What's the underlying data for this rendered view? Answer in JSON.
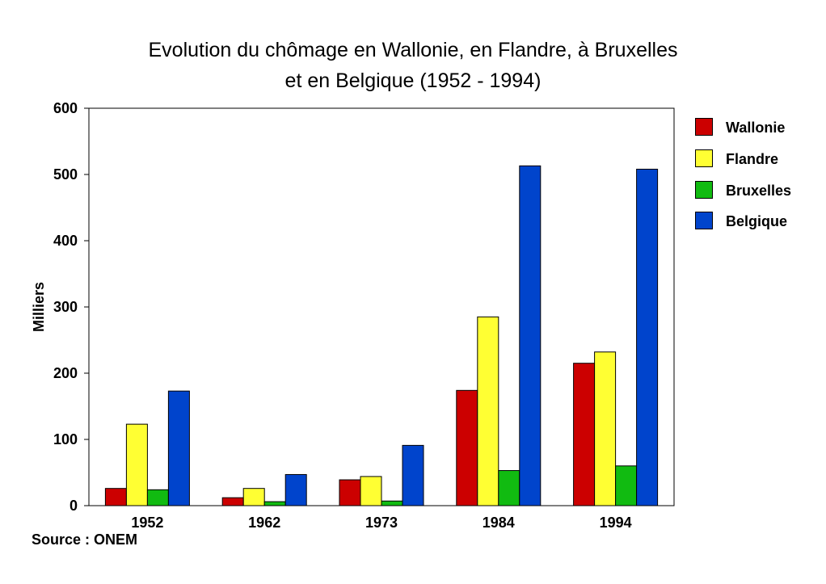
{
  "title_line1": "Evolution du chômage en Wallonie, en Flandre, à Bruxelles",
  "title_line2": "et en Belgique (1952 - 1994)",
  "source": "Source : ONEM",
  "colors": {
    "Wallonie": "#cc0000",
    "Flandre": "#ffff33",
    "Bruxelles": "#11bb11",
    "Belgique": "#0044cc"
  },
  "chart_data": {
    "type": "bar",
    "title": "Evolution du chômage en Wallonie, en Flandre, à Bruxelles et en Belgique (1952 - 1994)",
    "xlabel": "",
    "ylabel": "Milliers",
    "ylim": [
      0,
      600
    ],
    "yticks": [
      0,
      100,
      200,
      300,
      400,
      500,
      600
    ],
    "grid": false,
    "legend_position": "right",
    "categories": [
      "1952",
      "1962",
      "1973",
      "1984",
      "1994"
    ],
    "series": [
      {
        "name": "Wallonie",
        "values": [
          26,
          12,
          39,
          174,
          215
        ]
      },
      {
        "name": "Flandre",
        "values": [
          123,
          26,
          44,
          285,
          232
        ]
      },
      {
        "name": "Bruxelles",
        "values": [
          24,
          6,
          7,
          53,
          60
        ]
      },
      {
        "name": "Belgique",
        "values": [
          173,
          47,
          91,
          513,
          508
        ]
      }
    ]
  }
}
